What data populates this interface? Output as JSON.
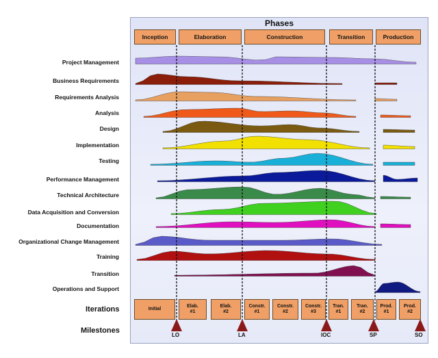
{
  "title": "Phases",
  "phases": [
    "Inception",
    "Elaboration",
    "Construction",
    "Transition",
    "Production"
  ],
  "disciplines": [
    {
      "label": "Project Management",
      "color": "#a78fe6"
    },
    {
      "label": "Business Requirements",
      "color": "#8a1e0a"
    },
    {
      "label": "Requirements Analysis",
      "color": "#e8a060"
    },
    {
      "label": "Analysis",
      "color": "#ef5a1a"
    },
    {
      "label": "Design",
      "color": "#7a5a10"
    },
    {
      "label": "Implementation",
      "color": "#f2e000"
    },
    {
      "label": "Testing",
      "color": "#18b0d8"
    },
    {
      "label": "Performance Management",
      "color": "#0a1a9a"
    },
    {
      "label": "Technical Architecture",
      "color": "#3a8a4a"
    },
    {
      "label": "Data Acquisition and Conversion",
      "color": "#40d020"
    },
    {
      "label": "Documentation",
      "color": "#e010c0"
    },
    {
      "label": "Organizational Change Management",
      "color": "#5a5ac8"
    },
    {
      "label": "Training",
      "color": "#b01010"
    },
    {
      "label": "Transition",
      "color": "#801050"
    },
    {
      "label": "Operations and Support",
      "color": "#101a80"
    }
  ],
  "iterations_label": "Iterations",
  "iterations": [
    "Initial",
    "Elab.\n#1",
    "Elab.\n#2",
    "Constr.\n#1",
    "Constr.\n#2",
    "Constr.\n#3",
    "Tran.\n#1",
    "Tran.\n#2",
    "Prod.\n#1",
    "Prod.\n#2"
  ],
  "milestones_label": "Milestones",
  "milestones": [
    "LO",
    "LA",
    "IOC",
    "SP",
    "SO"
  ],
  "milestone_color": "#8a1a1a"
}
